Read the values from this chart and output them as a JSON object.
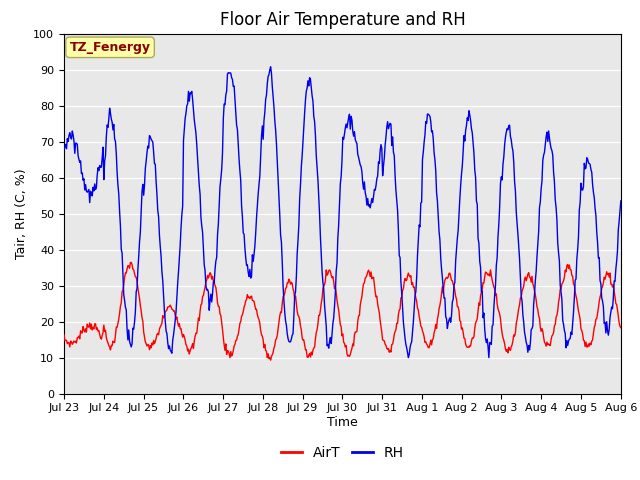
{
  "title": "Floor Air Temperature and RH",
  "xlabel": "Time",
  "ylabel": "Tair, RH (C, %)",
  "annotation": "TZ_Fenergy",
  "ylim": [
    0,
    100
  ],
  "yticks": [
    0,
    10,
    20,
    30,
    40,
    50,
    60,
    70,
    80,
    90,
    100
  ],
  "xtick_labels": [
    "Jul 23",
    "Jul 24",
    "Jul 25",
    "Jul 26",
    "Jul 27",
    "Jul 28",
    "Jul 29",
    "Jul 30",
    "Jul 31",
    "Aug 1",
    "Aug 2",
    "Aug 3",
    "Aug 4",
    "Aug 5",
    "Aug 6"
  ],
  "airt_color": "#FF0000",
  "rh_color": "#0000EE",
  "bg_color": "#E8E8E8",
  "legend_airt": "AirT",
  "legend_rh": "RH",
  "title_fontsize": 12,
  "label_fontsize": 9,
  "tick_fontsize": 8,
  "annotation_fontsize": 9,
  "annotation_bg": "#FFFFAA",
  "annotation_border": "#AAAA55",
  "n_days": 14,
  "airt_min_per_day": [
    14,
    13,
    13,
    12,
    11,
    10,
    10,
    11,
    12,
    13,
    13,
    12,
    13,
    13
  ],
  "airt_max_per_day": [
    19,
    36,
    24,
    33,
    27,
    31,
    34,
    34,
    33,
    33,
    34,
    33,
    35,
    33
  ],
  "rh_min_per_day": [
    55,
    14,
    12,
    25,
    33,
    13,
    13,
    53,
    11,
    19,
    12,
    12,
    13,
    18
  ],
  "rh_max_per_day": [
    72,
    78,
    71,
    84,
    90,
    89,
    87,
    76,
    75,
    77,
    78,
    74,
    72,
    65
  ]
}
